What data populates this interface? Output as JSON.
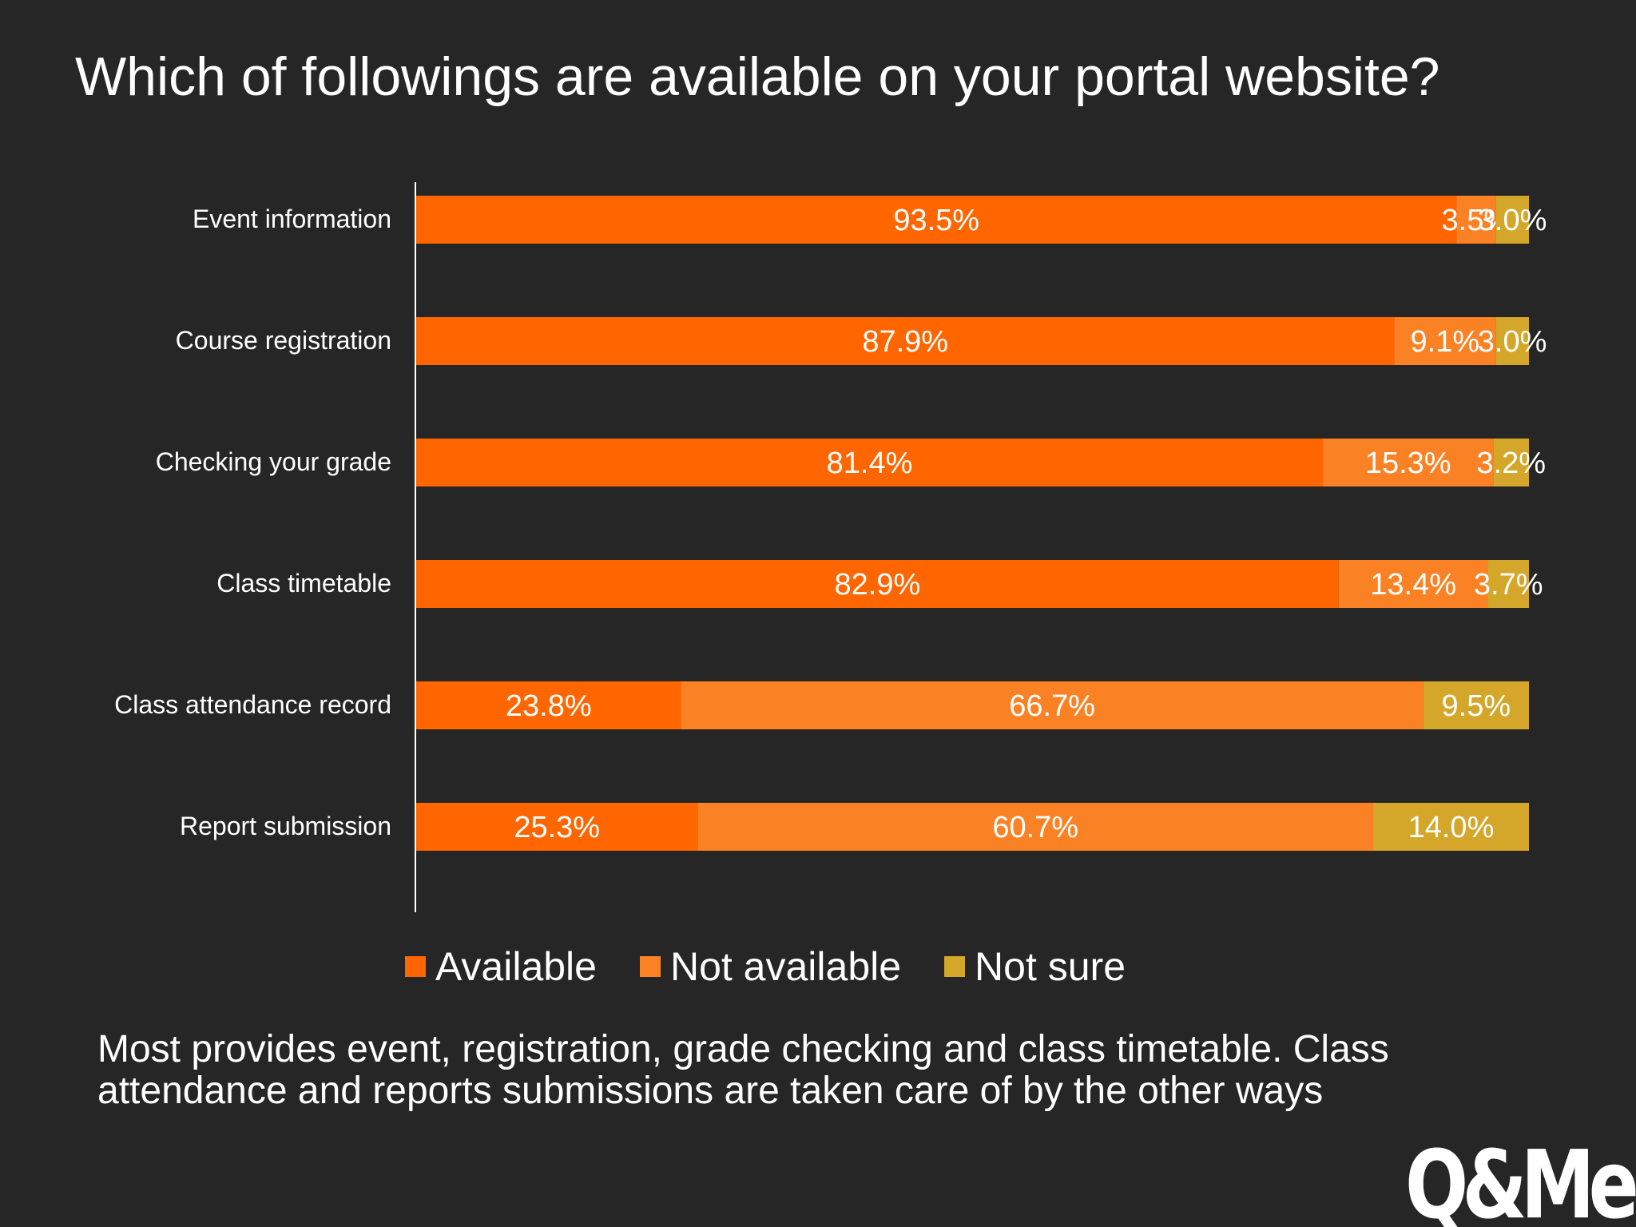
{
  "title": "Which of followings are available on your portal website?",
  "summary": "Most provides event, registration, grade checking and class timetable. Class attendance and reports submissions are taken care of by the other ways",
  "logo_text": "Q&Me",
  "colors": {
    "background": "#262626",
    "available": "#FF6600",
    "not_available": "#FB8224",
    "not_sure": "#D4A62A",
    "text": "#FFFFFF"
  },
  "chart_data": {
    "type": "bar",
    "orientation": "horizontal",
    "stacked": true,
    "categories": [
      "Event information",
      "Course registration",
      "Checking your grade",
      "Class timetable",
      "Class attendance record",
      "Report submission"
    ],
    "series": [
      {
        "name": "Available",
        "values": [
          93.5,
          87.9,
          81.4,
          82.9,
          23.8,
          25.3
        ],
        "color": "#FF6600"
      },
      {
        "name": "Not available",
        "values": [
          3.5,
          9.1,
          15.3,
          13.4,
          66.7,
          60.7
        ],
        "color": "#FB8224"
      },
      {
        "name": "Not sure",
        "values": [
          3.0,
          3.0,
          3.2,
          3.7,
          9.5,
          14.0
        ],
        "color": "#D4A62A"
      }
    ],
    "value_labels": [
      [
        "93.5%",
        "3.5%",
        "3.0%"
      ],
      [
        "87.9%",
        "9.1%",
        "3.0%"
      ],
      [
        "81.4%",
        "15.3%",
        "3.2%"
      ],
      [
        "82.9%",
        "13.4%",
        "3.7%"
      ],
      [
        "23.8%",
        "66.7%",
        "9.5%"
      ],
      [
        "25.3%",
        "60.7%",
        "14.0%"
      ]
    ],
    "xlim": [
      0,
      100
    ],
    "legend_position": "bottom",
    "grid": false
  }
}
